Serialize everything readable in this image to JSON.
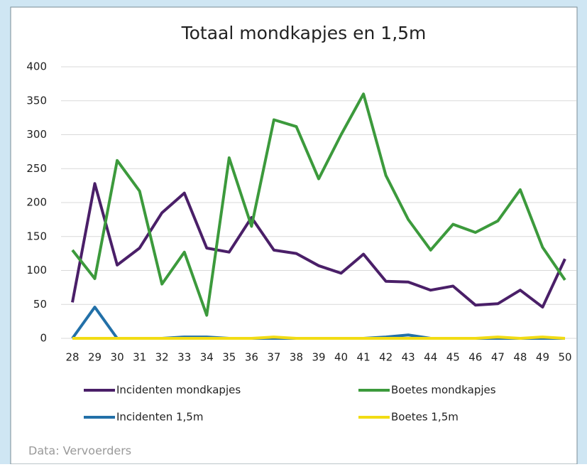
{
  "chart_data": {
    "type": "line",
    "title": "Totaal mondkapjes en 1,5m",
    "categories": [
      "28",
      "29",
      "30",
      "31",
      "32",
      "33",
      "34",
      "35",
      "36",
      "37",
      "38",
      "39",
      "40",
      "41",
      "42",
      "43",
      "44",
      "45",
      "46",
      "47",
      "48",
      "49",
      "50"
    ],
    "series": [
      {
        "name": "Incidenten mondkapjes",
        "color": "#4a1f68",
        "values": [
          53,
          228,
          108,
          133,
          185,
          214,
          133,
          127,
          178,
          130,
          125,
          107,
          96,
          124,
          84,
          83,
          71,
          77,
          49,
          51,
          71,
          46,
          117
        ]
      },
      {
        "name": "Boetes mondkapjes",
        "color": "#3c9a3c",
        "values": [
          130,
          88,
          262,
          217,
          80,
          127,
          34,
          266,
          165,
          322,
          312,
          235,
          300,
          360,
          240,
          175,
          130,
          168,
          156,
          173,
          219,
          134,
          86
        ]
      },
      {
        "name": "Incidenten 1,5m",
        "color": "#2270a8",
        "values": [
          0,
          46,
          0,
          0,
          0,
          2,
          2,
          0,
          0,
          0,
          0,
          0,
          0,
          0,
          2,
          5,
          0,
          0,
          0,
          0,
          0,
          0,
          0
        ]
      },
      {
        "name": "Boetes 1,5m",
        "color": "#f2dc14",
        "values": [
          0,
          0,
          0,
          0,
          0,
          0,
          0,
          0,
          0,
          2,
          0,
          0,
          0,
          0,
          0,
          0,
          0,
          0,
          0,
          2,
          0,
          2,
          0
        ]
      }
    ],
    "ylim": [
      0,
      400
    ],
    "yticks": [
      0,
      50,
      100,
      150,
      200,
      250,
      300,
      350,
      400
    ],
    "grid": true,
    "source": "Data: Vervoerders"
  }
}
